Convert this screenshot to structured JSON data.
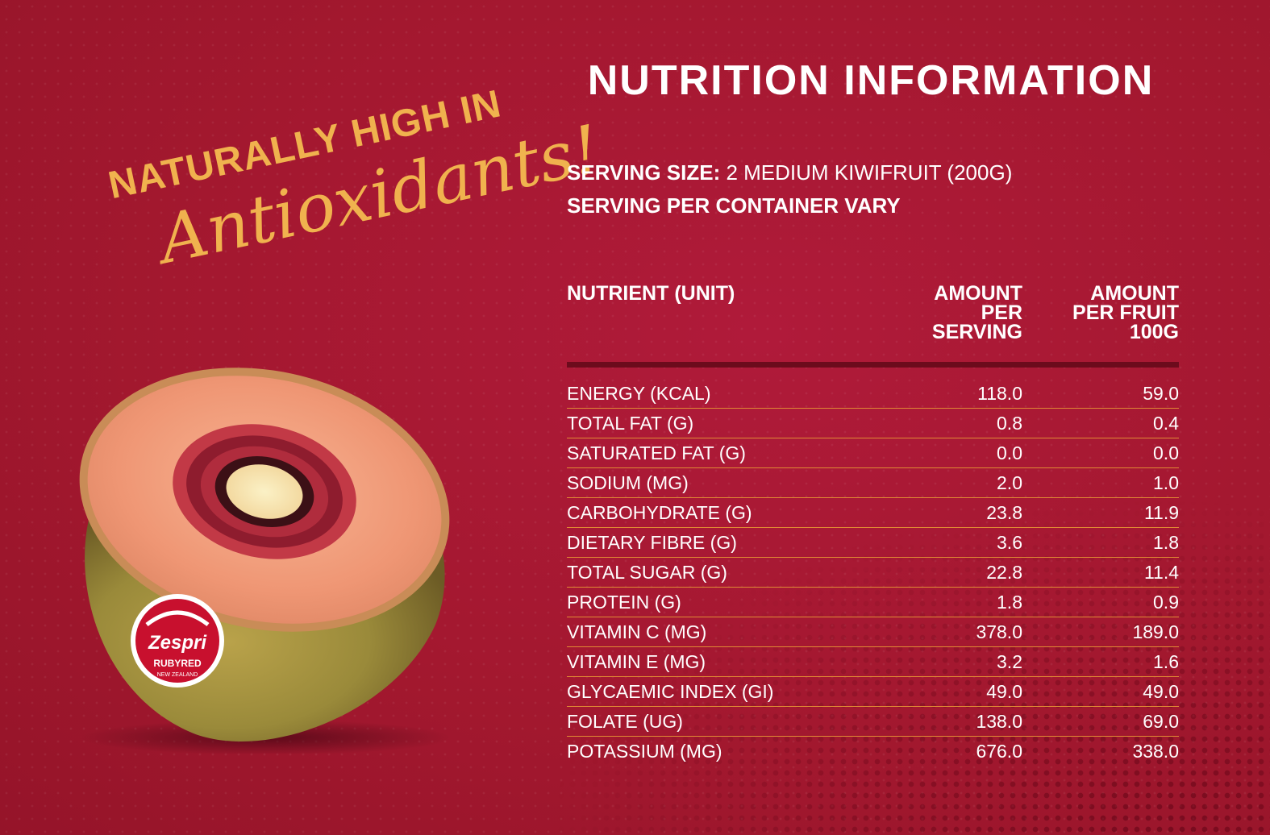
{
  "headline": {
    "top": "NATURALLY HIGH IN",
    "script": "Antioxidants!"
  },
  "brand": {
    "name": "Zespri",
    "variety": "RUBYRED",
    "origin": "NEW ZEALAND"
  },
  "title": "NUTRITION INFORMATION",
  "serving": {
    "size_label": "SERVING SIZE:",
    "size_value": "2 MEDIUM KIWIFRUIT (200G)",
    "container": "SERVING PER CONTAINER VARY"
  },
  "columns": {
    "nutrient": "NUTRIENT (UNIT)",
    "serving_l1": "AMOUNT",
    "serving_l2": "PER",
    "serving_l3": "SERVING",
    "fruit_l1": "AMOUNT",
    "fruit_l2": "PER FRUIT",
    "fruit_l3": "100G"
  },
  "rows": [
    {
      "nutrient": "ENERGY (KCAL)",
      "per_serving": "118.0",
      "per_100g": "59.0"
    },
    {
      "nutrient": "TOTAL FAT (G)",
      "per_serving": "0.8",
      "per_100g": "0.4"
    },
    {
      "nutrient": "SATURATED FAT (G)",
      "per_serving": "0.0",
      "per_100g": "0.0"
    },
    {
      "nutrient": "SODIUM (MG)",
      "per_serving": "2.0",
      "per_100g": "1.0"
    },
    {
      "nutrient": "CARBOHYDRATE (G)",
      "per_serving": "23.8",
      "per_100g": "11.9"
    },
    {
      "nutrient": "DIETARY FIBRE (G)",
      "per_serving": "3.6",
      "per_100g": "1.8"
    },
    {
      "nutrient": "TOTAL SUGAR (G)",
      "per_serving": "22.8",
      "per_100g": "11.4"
    },
    {
      "nutrient": "PROTEIN (G)",
      "per_serving": "1.8",
      "per_100g": "0.9"
    },
    {
      "nutrient": "VITAMIN C (MG)",
      "per_serving": "378.0",
      "per_100g": "189.0"
    },
    {
      "nutrient": "VITAMIN E (MG)",
      "per_serving": "3.2",
      "per_100g": "1.6"
    },
    {
      "nutrient": "GLYCAEMIC INDEX (GI)",
      "per_serving": "49.0",
      "per_100g": "49.0"
    },
    {
      "nutrient": "FOLATE (UG)",
      "per_serving": "138.0",
      "per_100g": "69.0"
    },
    {
      "nutrient": "POTASSIUM (MG)",
      "per_serving": "676.0",
      "per_100g": "338.0"
    }
  ],
  "colors": {
    "background": "#a3182f",
    "accent_gold": "#f0b24e",
    "rule_orange": "#e08a34",
    "rule_dark": "#6c0b1c"
  }
}
